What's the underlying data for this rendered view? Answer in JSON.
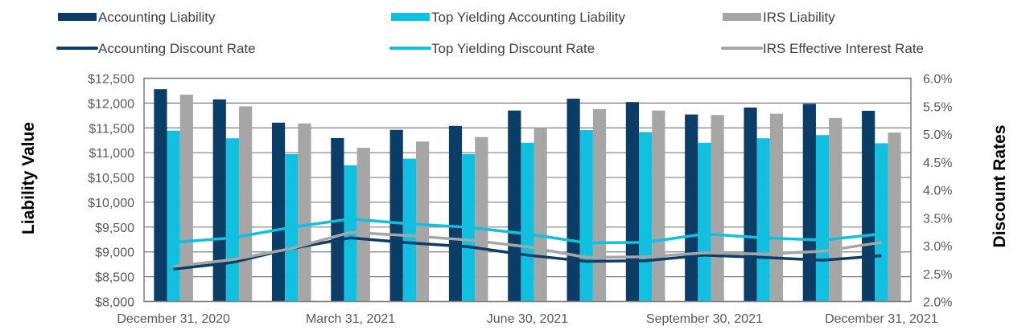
{
  "chart_data": {
    "type": "bar",
    "combo": "bar-and-line",
    "categories": [
      "Dec 2020",
      "Jan 2021",
      "Feb 2021",
      "Mar 2021",
      "Apr 2021",
      "May 2021",
      "Jun 2021",
      "Jul 2021",
      "Aug 2021",
      "Sep 2021",
      "Oct 2021",
      "Nov 2021",
      "Dec 2021"
    ],
    "tick_labels": [
      {
        "category_index": 0,
        "label": "December 31, 2020"
      },
      {
        "category_index": 3,
        "label": "March 31, 2021"
      },
      {
        "category_index": 6,
        "label": "June 30, 2021"
      },
      {
        "category_index": 9,
        "label": "September 30, 2021"
      },
      {
        "category_index": 12,
        "label": "December 31, 2021"
      }
    ],
    "bar_series": [
      {
        "name": "Accounting Liability",
        "color": "#0b3d66",
        "values": [
          12280,
          12075,
          11605,
          11295,
          11460,
          11540,
          11850,
          12090,
          12020,
          11770,
          11910,
          11985,
          11845
        ]
      },
      {
        "name": "Top Yielding Accounting Liability",
        "color": "#12bfdf",
        "values": [
          11445,
          11290,
          10970,
          10745,
          10880,
          10970,
          11200,
          11455,
          11415,
          11200,
          11290,
          11355,
          11190
        ]
      },
      {
        "name": "IRS Liability",
        "color": "#a6a6a6",
        "values": [
          12170,
          11935,
          11590,
          11100,
          11225,
          11315,
          11500,
          11880,
          11850,
          11760,
          11785,
          11700,
          11405
        ]
      }
    ],
    "line_series": [
      {
        "name": "Accounting Discount Rate",
        "color": "#0b3d66",
        "values": [
          2.58,
          2.7,
          2.95,
          3.14,
          3.05,
          2.98,
          2.83,
          2.72,
          2.73,
          2.83,
          2.79,
          2.74,
          2.82
        ]
      },
      {
        "name": "Top Yielding Discount Rate",
        "color": "#12bfdf",
        "values": [
          3.06,
          3.14,
          3.33,
          3.48,
          3.39,
          3.33,
          3.21,
          3.05,
          3.06,
          3.21,
          3.14,
          3.1,
          3.21
        ]
      },
      {
        "name": "IRS Effective Interest Rate",
        "color": "#a6a6a6",
        "values": [
          2.63,
          2.75,
          2.95,
          3.24,
          3.18,
          3.1,
          2.98,
          2.79,
          2.8,
          2.87,
          2.85,
          2.9,
          3.06
        ]
      }
    ],
    "y_left": {
      "label": "Liability Value",
      "range": [
        8000,
        12500
      ],
      "ticks": [
        8000,
        8500,
        9000,
        9500,
        10000,
        10500,
        11000,
        11500,
        12000,
        12500
      ],
      "tick_labels": [
        "$8,000",
        "$8,500",
        "$9,000",
        "$9,500",
        "$10,000",
        "$10,500",
        "$11,000",
        "$11,500",
        "$12,000",
        "$12,500"
      ]
    },
    "y_right": {
      "label": "Discount Rates",
      "range": [
        2.0,
        6.0
      ],
      "ticks": [
        2.0,
        2.5,
        3.0,
        3.5,
        4.0,
        4.5,
        5.0,
        5.5,
        6.0
      ],
      "tick_labels": [
        "2.0%",
        "2.5%",
        "3.0%",
        "3.5%",
        "4.0%",
        "4.5%",
        "5.0%",
        "5.5%",
        "6.0%"
      ]
    },
    "grid": true,
    "legend_placement": "top",
    "legend": [
      {
        "label": "Accounting Liability",
        "kind": "bar",
        "color": "#0b3d66"
      },
      {
        "label": "Top Yielding Accounting Liability",
        "kind": "bar",
        "color": "#12bfdf"
      },
      {
        "label": "IRS Liability",
        "kind": "bar",
        "color": "#a6a6a6"
      },
      {
        "label": "Accounting Discount Rate",
        "kind": "line",
        "color": "#0b3d66"
      },
      {
        "label": "Top Yielding Discount Rate",
        "kind": "line",
        "color": "#12bfdf"
      },
      {
        "label": "IRS Effective Interest Rate",
        "kind": "line",
        "color": "#a6a6a6"
      }
    ],
    "title": ""
  }
}
